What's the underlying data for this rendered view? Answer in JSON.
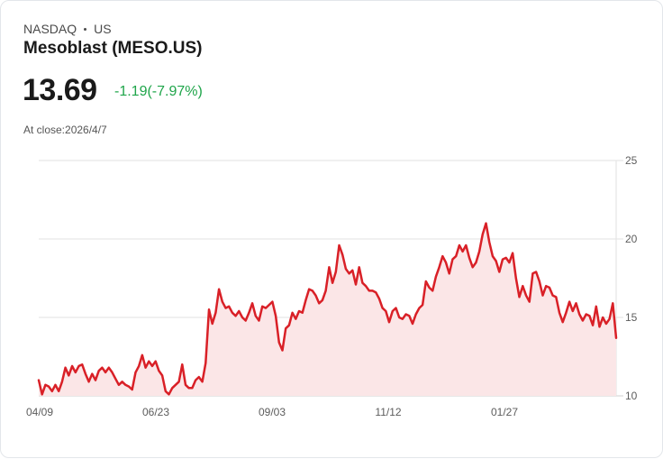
{
  "header": {
    "exchange": "NASDAQ",
    "region": "US",
    "title": "Mesoblast (MESO.US)",
    "price": "13.69",
    "change": "-1.19(-7.97%)",
    "at_close": "At close:2026/4/7"
  },
  "colors": {
    "line": "#d92027",
    "fill": "#fbe6e7",
    "change_text": "#1fa54a",
    "grid": "#e2e2e2"
  },
  "chart_data": {
    "type": "area",
    "title": "Mesoblast (MESO.US)",
    "xlabel": "",
    "ylabel": "",
    "ylim": [
      10,
      25
    ],
    "yticks": [
      25,
      20,
      15,
      10
    ],
    "xticks": [
      "04/09",
      "06/23",
      "09/03",
      "11/12",
      "01/27"
    ],
    "grid": true,
    "y_axis_position": "right",
    "values": [
      11.0,
      10.1,
      10.7,
      10.6,
      10.3,
      10.7,
      10.3,
      10.9,
      11.8,
      11.3,
      11.9,
      11.5,
      11.9,
      12.0,
      11.4,
      10.9,
      11.4,
      11.0,
      11.6,
      11.8,
      11.5,
      11.8,
      11.5,
      11.1,
      10.7,
      10.9,
      10.7,
      10.6,
      10.4,
      11.5,
      11.9,
      12.6,
      11.8,
      12.2,
      11.9,
      12.2,
      11.6,
      11.3,
      10.3,
      10.1,
      10.5,
      10.7,
      10.9,
      12.0,
      10.7,
      10.5,
      10.5,
      11.0,
      11.2,
      10.9,
      12.1,
      15.5,
      14.6,
      15.3,
      16.8,
      16.0,
      15.6,
      15.7,
      15.3,
      15.1,
      15.4,
      15.0,
      14.8,
      15.3,
      15.9,
      15.1,
      14.8,
      15.7,
      15.6,
      15.8,
      16.0,
      15.1,
      13.4,
      12.9,
      14.3,
      14.5,
      15.3,
      14.9,
      15.4,
      15.3,
      16.1,
      16.8,
      16.7,
      16.4,
      15.9,
      16.1,
      16.7,
      18.2,
      17.2,
      17.9,
      19.6,
      19.0,
      18.1,
      17.8,
      18.0,
      17.1,
      18.2,
      17.2,
      17.0,
      16.7,
      16.7,
      16.6,
      16.2,
      15.6,
      15.4,
      14.7,
      15.4,
      15.6,
      15.0,
      14.9,
      15.2,
      15.1,
      14.6,
      15.2,
      15.6,
      15.8,
      17.3,
      16.9,
      16.7,
      17.6,
      18.2,
      18.9,
      18.5,
      17.8,
      18.7,
      18.9,
      19.6,
      19.2,
      19.6,
      18.8,
      18.2,
      18.5,
      19.2,
      20.3,
      21.0,
      19.8,
      18.9,
      18.6,
      17.9,
      18.7,
      18.8,
      18.5,
      19.1,
      17.5,
      16.3,
      17.0,
      16.4,
      16.0,
      17.8,
      17.9,
      17.3,
      16.4,
      17.0,
      16.9,
      16.4,
      16.3,
      15.3,
      14.7,
      15.3,
      16.0,
      15.4,
      15.9,
      15.2,
      14.8,
      15.2,
      15.1,
      14.5,
      15.7,
      14.4,
      15.0,
      14.6,
      14.9,
      15.9,
      13.69
    ]
  }
}
